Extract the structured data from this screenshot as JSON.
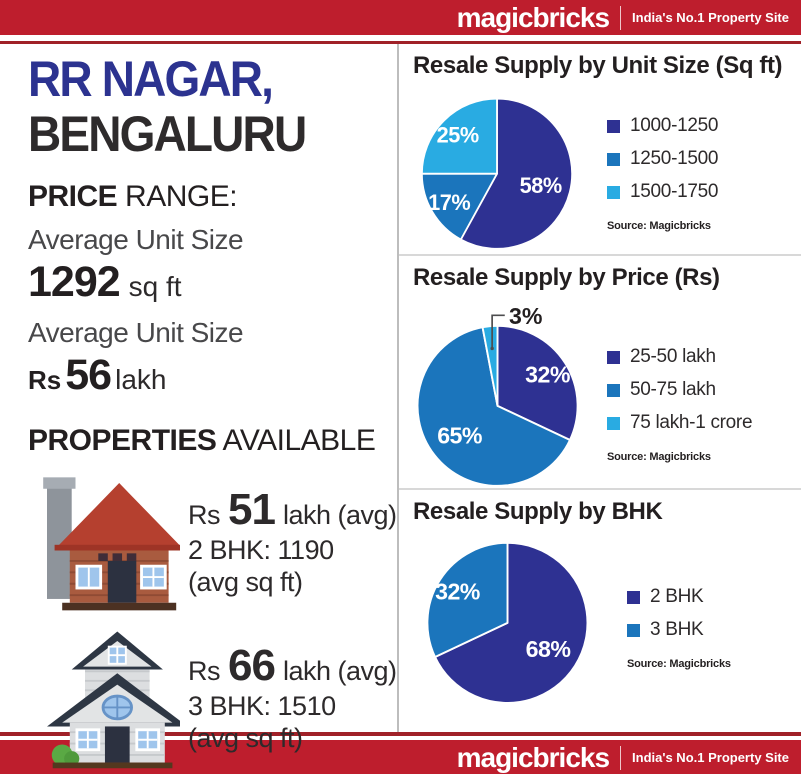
{
  "colors": {
    "brand_red": "#be1e2d",
    "rule_red": "#a02128",
    "navy": "#2e3192",
    "blue": "#1b75bc",
    "light_blue": "#29abe2",
    "title_navy": "#2c3390",
    "text_dark": "#231f20",
    "divider_gray": "#bdbdbd"
  },
  "brand": {
    "logo": "magicbricks",
    "tagline": "India's No.1 Property Site"
  },
  "left": {
    "title_line1": "RR NAGAR,",
    "title_line2": "BENGALURU",
    "price_range_bold": "PRICE",
    "price_range_rest": " RANGE:",
    "avg_size_label": "Average Unit Size",
    "avg_size_value": "1292",
    "avg_size_unit": "sq ft",
    "avg_price_label": "Average Unit Size",
    "avg_price_rs": "Rs",
    "avg_price_value": "56",
    "avg_price_unit": "lakh",
    "properties_bold": "PROPERTIES",
    "properties_rest": " AVAILABLE",
    "listings": [
      {
        "icon": "house-2bhk-icon",
        "rs": "Rs",
        "price": "51",
        "suffix": "lakh (avg)",
        "detail": "2 BHK: 1190",
        "detail2": "(avg sq ft)"
      },
      {
        "icon": "house-3bhk-icon",
        "rs": "Rs",
        "price": "66",
        "suffix": "lakh (avg)",
        "detail": "3 BHK: 1510",
        "detail2": "(avg sq ft)"
      }
    ]
  },
  "chart_data": [
    {
      "type": "pie",
      "title": "Resale Supply by Unit Size (Sq ft)",
      "labels": [
        "1000-1250",
        "1250-1500",
        "1500-1750"
      ],
      "values": [
        58,
        17,
        25
      ],
      "colors": [
        "#2e3192",
        "#1b75bc",
        "#29abe2"
      ],
      "label_format": "percent",
      "start_angle_deg": -90,
      "direction": "clockwise",
      "legend_position": "right",
      "source": "Source: Magicbricks"
    },
    {
      "type": "pie",
      "title": "Resale Supply by Price (Rs)",
      "labels": [
        "25-50 lakh",
        "50-75 lakh",
        "75 lakh-1 crore"
      ],
      "values": [
        32,
        65,
        3
      ],
      "colors": [
        "#2e3192",
        "#1b75bc",
        "#29abe2"
      ],
      "label_format": "percent",
      "start_angle_deg": -90,
      "direction": "clockwise",
      "legend_position": "right",
      "source": "Source: Magicbricks"
    },
    {
      "type": "pie",
      "title": "Resale Supply by BHK",
      "labels": [
        "2 BHK",
        "3 BHK"
      ],
      "values": [
        68,
        32
      ],
      "colors": [
        "#2e3192",
        "#1b75bc"
      ],
      "label_format": "percent",
      "start_angle_deg": -90,
      "direction": "clockwise",
      "legend_position": "right",
      "source": "Source: Magicbricks"
    }
  ]
}
